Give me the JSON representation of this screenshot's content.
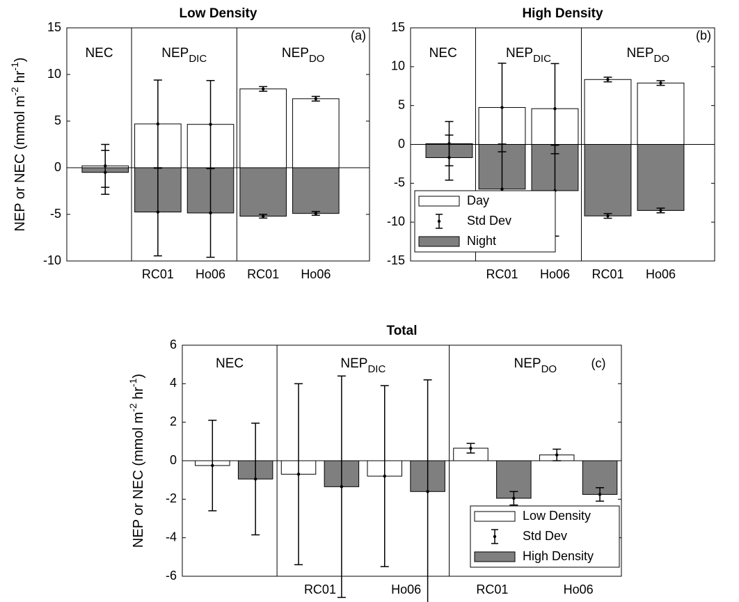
{
  "chart_data": [
    {
      "type": "bar",
      "title": "Low Density",
      "panel_label": "(a)",
      "grouped": false,
      "ylabel": [
        "NEP or NEC (mmol m",
        "-2",
        " hr",
        "-1",
        ")"
      ],
      "sections": [
        {
          "text": "NEC"
        },
        {
          "text": "NEP",
          "sub": "DIC"
        },
        {
          "text": "NEP",
          "sub": "DO"
        }
      ],
      "categories": [
        null,
        "RC01",
        "Ho06",
        "RC01",
        "Ho06"
      ],
      "series": [
        {
          "name": "Day",
          "color": "#ffffff",
          "values": [
            0.2,
            4.7,
            4.65,
            8.45,
            7.4
          ],
          "errors": [
            2.3,
            4.7,
            4.7,
            0.25,
            0.25
          ]
        },
        {
          "name": "Night",
          "color": "#7f7f7f",
          "values": [
            -0.5,
            -4.75,
            -4.85,
            -5.2,
            -4.9
          ],
          "errors": [
            2.35,
            4.7,
            4.75,
            0.2,
            0.2
          ]
        }
      ],
      "ylim": [
        -10,
        15
      ],
      "yticks": [
        -10,
        -5,
        0,
        5,
        10,
        15
      ]
    },
    {
      "type": "bar",
      "title": "High Density",
      "panel_label": "(b)",
      "grouped": false,
      "sections": [
        {
          "text": "NEC"
        },
        {
          "text": "NEP",
          "sub": "DIC"
        },
        {
          "text": "NEP",
          "sub": "DO"
        }
      ],
      "categories": [
        null,
        "RC01",
        "Ho06",
        "RC01",
        "Ho06"
      ],
      "series": [
        {
          "name": "Day",
          "color": "#ffffff",
          "values": [
            0.1,
            4.75,
            4.6,
            8.35,
            7.9
          ],
          "errors": [
            2.85,
            5.7,
            5.8,
            0.3,
            0.3
          ]
        },
        {
          "name": "Night",
          "color": "#7f7f7f",
          "values": [
            -1.7,
            -5.75,
            -5.95,
            -9.2,
            -8.5
          ],
          "errors": [
            2.9,
            5.8,
            5.85,
            0.3,
            0.3
          ]
        }
      ],
      "legend": {
        "position": "lower left",
        "error_label": "Std Dev"
      },
      "ylim": [
        -15,
        15
      ],
      "yticks": [
        -15,
        -10,
        -5,
        0,
        5,
        10,
        15
      ]
    },
    {
      "type": "bar",
      "title": "Total",
      "panel_label": "(c)",
      "grouped": true,
      "ylabel": [
        "NEP or NEC (mmol m",
        "-2",
        " hr",
        "-1",
        ")"
      ],
      "sections": [
        {
          "text": "NEC"
        },
        {
          "text": "NEP",
          "sub": "DIC"
        },
        {
          "text": "NEP",
          "sub": "DO"
        }
      ],
      "categories": [
        null,
        "RC01",
        "Ho06",
        "RC01",
        "Ho06"
      ],
      "series": [
        {
          "name": "Low Density",
          "color": "#ffffff",
          "values": [
            -0.25,
            -0.7,
            -0.8,
            0.65,
            0.3
          ],
          "errors": [
            2.35,
            4.7,
            4.7,
            0.25,
            0.3
          ]
        },
        {
          "name": "High Density",
          "color": "#7f7f7f",
          "values": [
            -0.95,
            -1.35,
            -1.6,
            -1.95,
            -1.75
          ],
          "errors": [
            2.9,
            5.75,
            5.8,
            0.35,
            0.35
          ]
        }
      ],
      "legend": {
        "position": "lower right",
        "error_label": "Std Dev"
      },
      "ylim": [
        -6,
        6
      ],
      "yticks": [
        -6,
        -4,
        -2,
        0,
        2,
        4,
        6
      ]
    }
  ]
}
